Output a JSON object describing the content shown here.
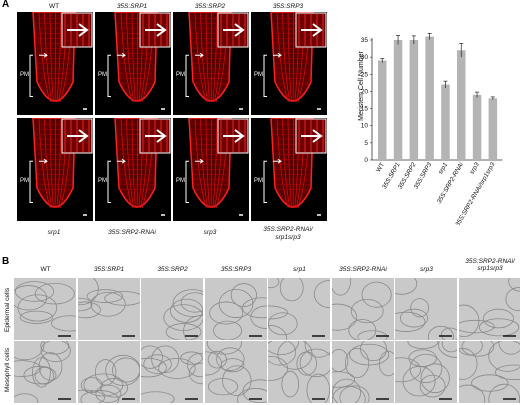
{
  "panel_a": {
    "letter": "A",
    "top_labels": [
      "WT",
      "35S:SRP1",
      "35S:SRP2",
      "35S:SRP3"
    ],
    "bottom_labels": [
      "srp1",
      "35S:SRP2-RNAi",
      "srp3",
      "35S:SRP2-RNAi/ srp1srp3"
    ],
    "pm_label": "PM"
  },
  "panel_b": {
    "letter": "B",
    "column_labels": [
      "WT",
      "35S:SRP1",
      "35S:SRP2",
      "35S:SRP3",
      "srp1",
      "35S:SRP2-RNAi",
      "srp3",
      "35S:SRP2-RNAi/ srp1srp3"
    ],
    "row_labels": [
      "Epidermal cells",
      "Mesophyll cells"
    ]
  },
  "chart_data": {
    "type": "bar",
    "ylabel": "Meristem Cell Number",
    "ylim": [
      0,
      35
    ],
    "yticks": [
      0,
      5,
      10,
      15,
      20,
      25,
      30,
      35
    ],
    "categories": [
      "WT",
      "35S:SRP1",
      "35S:SRP2",
      "35S:SRP3",
      "srp1",
      "35S:SRP2-RNAi",
      "srp3",
      "35S:SRP2-RNAi/srp1srp3"
    ],
    "values": [
      29,
      35,
      35,
      36,
      22,
      32,
      19,
      18
    ],
    "errors": [
      0.6,
      1.3,
      1.2,
      0.9,
      1.0,
      2.0,
      0.8,
      0.4
    ]
  }
}
